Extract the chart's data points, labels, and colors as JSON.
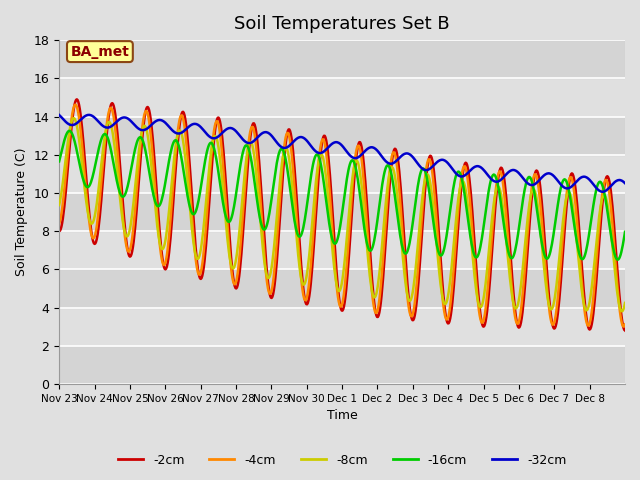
{
  "title": "Soil Temperatures Set B",
  "xlabel": "Time",
  "ylabel": "Soil Temperature (C)",
  "ylim": [
    0,
    18
  ],
  "annotation": "BA_met",
  "legend_labels": [
    "-2cm",
    "-4cm",
    "-8cm",
    "-16cm",
    "-32cm"
  ],
  "legend_colors": [
    "#cc0000",
    "#ff8800",
    "#cccc00",
    "#00cc00",
    "#0000cc"
  ],
  "bg_color": "#e0e0e0",
  "tick_labels": [
    "Nov 23",
    "Nov 24",
    "Nov 25",
    "Nov 26",
    "Nov 27",
    "Nov 28",
    "Nov 29",
    "Nov 30",
    "Dec 1",
    "Dec 2",
    "Dec 3",
    "Dec 4",
    "Dec 5",
    "Dec 6",
    "Dec 7",
    "Dec 8"
  ],
  "num_days": 16,
  "pts_per_day": 48
}
